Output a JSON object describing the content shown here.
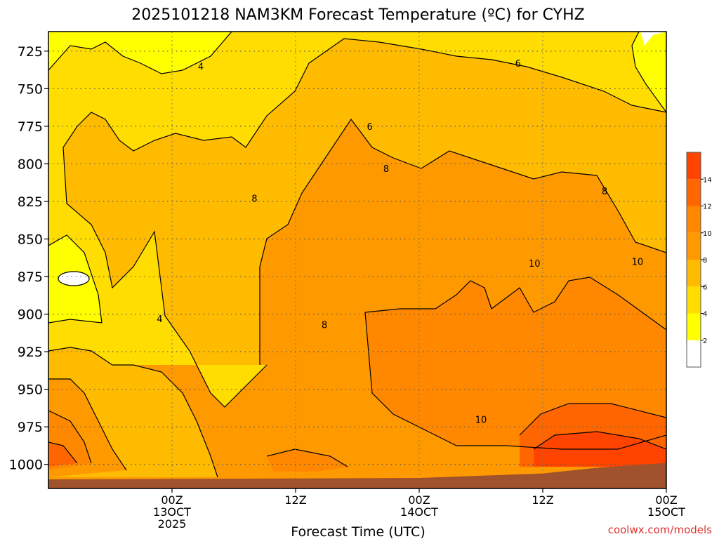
{
  "chart_data": {
    "type": "heatmap",
    "title": "2025101218 NAM3KM Forecast Temperature (ºC) for CYHZ",
    "xlabel": "Forecast Time (UTC)",
    "ylabel": "",
    "credit": "coolwx.com/models",
    "x_range_hours": [
      -15,
      60
    ],
    "y_range_hpa": [
      712,
      1016
    ],
    "y_ticks": [
      725,
      750,
      775,
      800,
      825,
      850,
      875,
      900,
      925,
      950,
      975,
      1000
    ],
    "x_ticks": [
      {
        "hour": 0,
        "lines": [
          "00Z",
          "13OCT",
          "2025"
        ]
      },
      {
        "hour": 15,
        "lines": [
          "12Z"
        ]
      },
      {
        "hour": 30,
        "lines": [
          "00Z",
          "14OCT"
        ]
      },
      {
        "hour": 45,
        "lines": [
          "12Z"
        ]
      },
      {
        "hour": 60,
        "lines": [
          "00Z",
          "15OCT"
        ]
      }
    ],
    "colorbar": {
      "ticks": [
        "2",
        "4",
        "6",
        "8",
        "10",
        "12",
        "14"
      ],
      "levels": [
        0,
        2,
        4,
        6,
        8,
        10,
        12,
        14,
        16
      ],
      "colors": [
        "#ffffff",
        "#ffff00",
        "#ffdd00",
        "#ffbb00",
        "#ff9900",
        "#ff8800",
        "#ff6600",
        "#ff4400"
      ]
    },
    "contour_labels": [
      {
        "text": "4",
        "hour": 3.5,
        "p": 735
      },
      {
        "text": "6",
        "hour": 24,
        "p": 775
      },
      {
        "text": "6",
        "hour": 42,
        "p": 733
      },
      {
        "text": "8",
        "hour": 10,
        "p": 823
      },
      {
        "text": "8",
        "hour": 26,
        "p": 803
      },
      {
        "text": "8",
        "hour": 52.5,
        "p": 818
      },
      {
        "text": "8",
        "hour": 18.5,
        "p": 907
      },
      {
        "text": "4",
        "hour": -1.5,
        "p": 903
      },
      {
        "text": "10",
        "hour": 44,
        "p": 866
      },
      {
        "text": "10",
        "hour": 56.5,
        "p": 865
      },
      {
        "text": "10",
        "hour": 37.5,
        "p": 970
      }
    ],
    "terrain": {
      "hours": [
        -15,
        30,
        45,
        52,
        60
      ],
      "p": [
        1010,
        1009,
        1006,
        1002,
        999
      ]
    },
    "terrain_color": "#a0522d"
  }
}
